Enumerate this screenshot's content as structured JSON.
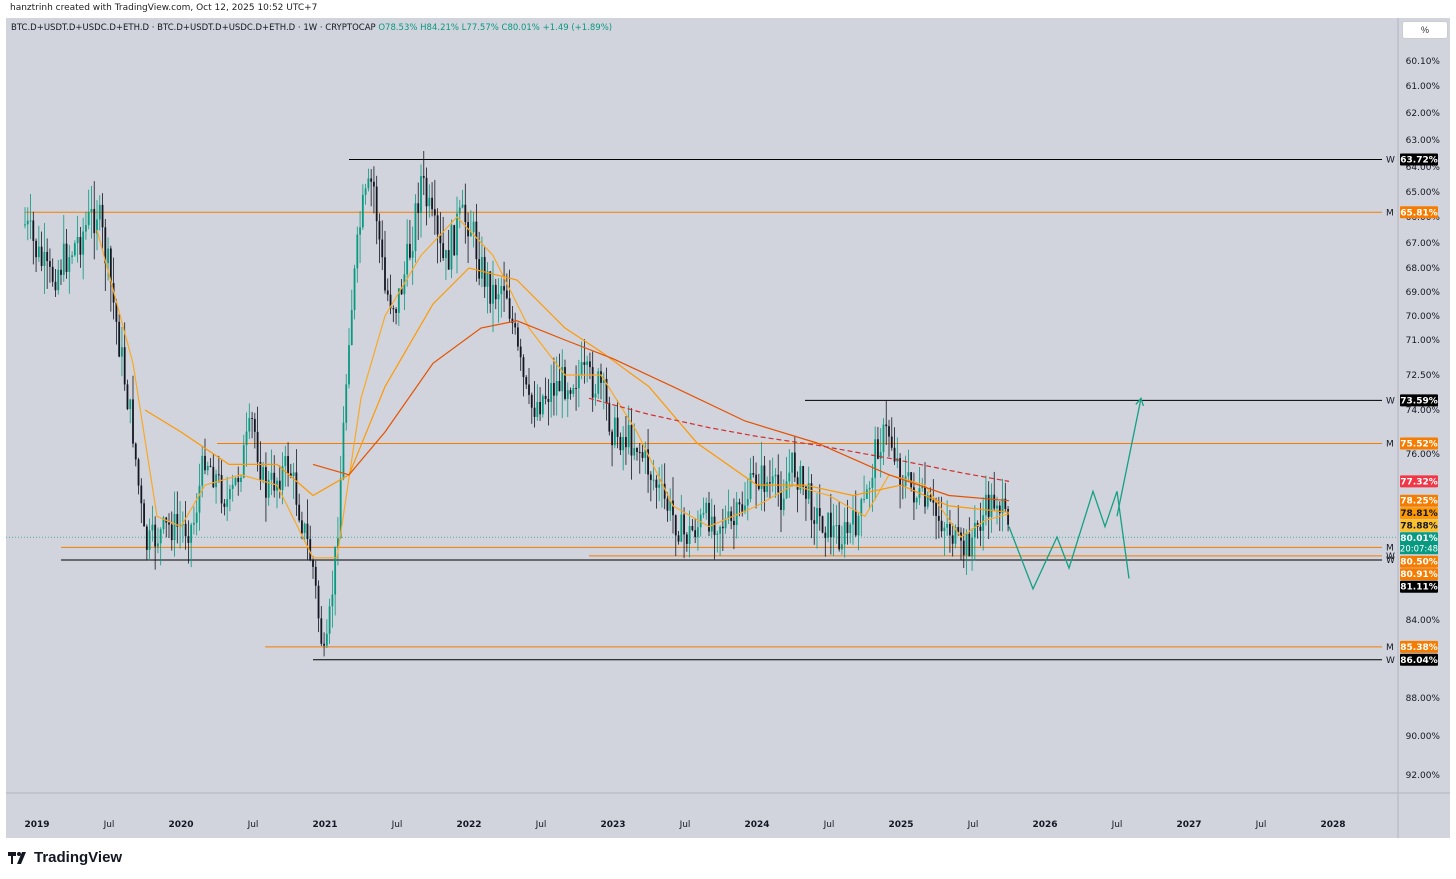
{
  "attribution": "hanztrinh created with TradingView.com, Oct 12, 2025 10:52 UTC+7",
  "symbol": {
    "name": "BTC.D+USDT.D+USDC.D+ETH.D · BTC.D+USDT.D+USDC.D+ETH.D · 1W · CRYPTOCAP",
    "open": "O78.53%",
    "high": "H84.21%",
    "low": "L77.57%",
    "close": "C80.01%",
    "change": "+1.49 (+1.89%)"
  },
  "percent_button": "%",
  "brand": "TradingView",
  "chart_data": {
    "type": "candlestick",
    "title": "",
    "y_axis": {
      "inverted": true,
      "ticks": [
        "60.10%",
        "61.00%",
        "62.00%",
        "63.00%",
        "64.00%",
        "65.00%",
        "66.00%",
        "67.00%",
        "68.00%",
        "69.00%",
        "70.00%",
        "71.00%",
        "72.50%",
        "74.00%",
        "76.00%",
        "84.00%",
        "88.00%",
        "90.00%",
        "92.00%"
      ],
      "tick_values": [
        60.1,
        61,
        62,
        63,
        64,
        65,
        66,
        67,
        68,
        69,
        70,
        71,
        72.5,
        74,
        76,
        84,
        88,
        90,
        92
      ]
    },
    "x_axis": {
      "labels": [
        "2019",
        "Jul",
        "2020",
        "Jul",
        "2021",
        "Jul",
        "2022",
        "Jul",
        "2023",
        "Jul",
        "2024",
        "Jul",
        "2025",
        "Jul",
        "2026",
        "Jul",
        "2027",
        "Jul",
        "2028"
      ],
      "dates": [
        "2019-01",
        "2019-07",
        "2020-01",
        "2020-07",
        "2021-01",
        "2021-07",
        "2022-01",
        "2022-07",
        "2023-01",
        "2023-07",
        "2024-01",
        "2024-07",
        "2025-01",
        "2025-07",
        "2026-01",
        "2026-07",
        "2027-01",
        "2027-07",
        "2028-01"
      ]
    },
    "horizontal_levels": [
      {
        "value": 63.72,
        "label": "63.72%",
        "tag": "W",
        "color": "#000000",
        "from": "2021-03"
      },
      {
        "value": 65.81,
        "label": "65.81%",
        "tag": "M",
        "color": "#f57c00",
        "from": "2018-12"
      },
      {
        "value": 73.59,
        "label": "73.59%",
        "tag": "W",
        "color": "#000000",
        "from": "2024-05"
      },
      {
        "value": 75.52,
        "label": "75.52%",
        "tag": "M",
        "color": "#f57c00",
        "from": "2020-04"
      },
      {
        "value": 80.5,
        "label": "80.50%",
        "tag": "M",
        "color": "#f57c00",
        "from": "2019-03"
      },
      {
        "value": 80.91,
        "label": "80.91%",
        "tag": "W",
        "color": "#f57c00",
        "from": "2022-11"
      },
      {
        "value": 81.11,
        "label": "81.11%",
        "tag": "W",
        "color": "#000000",
        "from": "2019-03"
      },
      {
        "value": 85.38,
        "label": "85.38%",
        "tag": "M",
        "color": "#f57c00",
        "from": "2020-08"
      },
      {
        "value": 86.04,
        "label": "86.04%",
        "tag": "W",
        "color": "#000000",
        "from": "2020-12"
      }
    ],
    "price_badges": [
      {
        "value": 77.32,
        "label": "77.32%",
        "color": "#f23645"
      },
      {
        "value": 78.25,
        "label": "78.25%",
        "color": "#f57c00"
      },
      {
        "value": 78.81,
        "label": "78.81%",
        "color": "#ff9800"
      },
      {
        "value": 78.88,
        "label": "78.88%",
        "color": "#fbc02d"
      },
      {
        "value": 80.01,
        "label": "80.01%",
        "color": "#089981"
      }
    ],
    "countdown": "20:07:48",
    "current_price": 80.01,
    "series": [
      {
        "kind": "candles",
        "approx_path": [
          [
            "2018-12",
            66.3
          ],
          [
            "2019-02",
            68.5
          ],
          [
            "2019-04",
            67.2
          ],
          [
            "2019-06",
            65.7
          ],
          [
            "2019-07",
            68.2
          ],
          [
            "2019-09",
            75.0
          ],
          [
            "2019-10",
            80.5
          ],
          [
            "2019-12",
            79.5
          ],
          [
            "2020-02",
            79.5
          ],
          [
            "2020-03",
            76.0
          ],
          [
            "2020-05",
            78.5
          ],
          [
            "2020-07",
            74.5
          ],
          [
            "2020-08",
            77.8
          ],
          [
            "2020-10",
            76.5
          ],
          [
            "2020-12",
            81.5
          ],
          [
            "2021-01",
            86.5
          ],
          [
            "2021-02",
            80.0
          ],
          [
            "2021-03",
            70.5
          ],
          [
            "2021-04",
            66.0
          ],
          [
            "2021-05",
            64.5
          ],
          [
            "2021-06",
            69.0
          ],
          [
            "2021-07",
            69.5
          ],
          [
            "2021-08",
            67.5
          ],
          [
            "2021-09",
            64.5
          ],
          [
            "2021-10",
            66.5
          ],
          [
            "2021-11",
            68.0
          ],
          [
            "2021-12",
            66.3
          ],
          [
            "2022-01",
            66.0
          ],
          [
            "2022-02",
            68.0
          ],
          [
            "2022-03",
            69.0
          ],
          [
            "2022-04",
            68.5
          ],
          [
            "2022-05",
            71.5
          ],
          [
            "2022-06",
            74.0
          ],
          [
            "2022-08",
            73.0
          ],
          [
            "2022-10",
            72.5
          ],
          [
            "2022-12",
            73.0
          ],
          [
            "2023-01",
            75.0
          ],
          [
            "2023-03",
            75.5
          ],
          [
            "2023-05",
            78.0
          ],
          [
            "2023-07",
            80.0
          ],
          [
            "2023-09",
            79.0
          ],
          [
            "2023-11",
            79.5
          ],
          [
            "2024-01",
            77.0
          ],
          [
            "2024-03",
            78.0
          ],
          [
            "2024-04",
            76.5
          ],
          [
            "2024-06",
            79.0
          ],
          [
            "2024-08",
            80.0
          ],
          [
            "2024-09",
            79.5
          ],
          [
            "2024-10",
            78.5
          ],
          [
            "2024-11",
            75.5
          ],
          [
            "2024-12",
            75.0
          ],
          [
            "2025-01",
            77.0
          ],
          [
            "2025-03",
            78.5
          ],
          [
            "2025-05",
            79.5
          ],
          [
            "2025-06",
            80.8
          ],
          [
            "2025-07",
            80.0
          ],
          [
            "2025-08",
            78.8
          ],
          [
            "2025-09",
            78.0
          ],
          [
            "2025-10",
            80.01
          ]
        ]
      },
      {
        "kind": "ma",
        "color": "#f9a825",
        "approx_path": [
          [
            "2019-06",
            66.5
          ],
          [
            "2019-09",
            72.0
          ],
          [
            "2019-11",
            79.0
          ],
          [
            "2020-01",
            79.5
          ],
          [
            "2020-03",
            77.5
          ],
          [
            "2020-06",
            77.0
          ],
          [
            "2020-09",
            77.5
          ],
          [
            "2020-12",
            81.0
          ],
          [
            "2021-02",
            81.0
          ],
          [
            "2021-04",
            73.5
          ],
          [
            "2021-06",
            70.0
          ],
          [
            "2021-09",
            67.5
          ],
          [
            "2021-12",
            66.0
          ],
          [
            "2022-03",
            67.5
          ],
          [
            "2022-06",
            70.5
          ],
          [
            "2022-09",
            72.5
          ],
          [
            "2022-12",
            72.5
          ],
          [
            "2023-03",
            75.0
          ],
          [
            "2023-06",
            78.5
          ],
          [
            "2023-09",
            79.5
          ],
          [
            "2024-01",
            78.5
          ],
          [
            "2024-04",
            77.5
          ],
          [
            "2024-07",
            78.0
          ],
          [
            "2024-10",
            79.0
          ],
          [
            "2024-12",
            77.0
          ],
          [
            "2025-03",
            77.5
          ],
          [
            "2025-06",
            80.0
          ],
          [
            "2025-08",
            79.2
          ],
          [
            "2025-10",
            78.88
          ]
        ]
      },
      {
        "kind": "ma",
        "color": "#ff9800",
        "approx_path": [
          [
            "2019-10",
            74.0
          ],
          [
            "2020-01",
            75.0
          ],
          [
            "2020-05",
            76.5
          ],
          [
            "2020-09",
            76.5
          ],
          [
            "2020-12",
            78.0
          ],
          [
            "2021-03",
            77.0
          ],
          [
            "2021-06",
            73.0
          ],
          [
            "2021-10",
            69.5
          ],
          [
            "2022-01",
            68.0
          ],
          [
            "2022-05",
            68.5
          ],
          [
            "2022-09",
            70.5
          ],
          [
            "2022-12",
            71.5
          ],
          [
            "2023-04",
            73.0
          ],
          [
            "2023-08",
            75.5
          ],
          [
            "2024-01",
            77.5
          ],
          [
            "2024-05",
            77.5
          ],
          [
            "2024-09",
            78.0
          ],
          [
            "2025-01",
            77.5
          ],
          [
            "2025-05",
            78.5
          ],
          [
            "2025-10",
            78.81
          ]
        ]
      },
      {
        "kind": "ma",
        "color": "#e65100",
        "approx_path": [
          [
            "2020-12",
            76.5
          ],
          [
            "2021-03",
            77.0
          ],
          [
            "2021-06",
            75.0
          ],
          [
            "2021-10",
            72.0
          ],
          [
            "2022-02",
            70.5
          ],
          [
            "2022-05",
            70.2
          ],
          [
            "2022-09",
            71.0
          ],
          [
            "2023-01",
            71.8
          ],
          [
            "2023-06",
            73.0
          ],
          [
            "2023-12",
            74.5
          ],
          [
            "2024-06",
            75.5
          ],
          [
            "2024-12",
            77.0
          ],
          [
            "2025-05",
            78.0
          ],
          [
            "2025-10",
            78.25
          ]
        ]
      },
      {
        "kind": "ma",
        "color": "#d32f2f",
        "dashed": true,
        "approx_path": [
          [
            "2022-11",
            73.5
          ],
          [
            "2023-04",
            74.2
          ],
          [
            "2023-09",
            74.8
          ],
          [
            "2024-01",
            75.2
          ],
          [
            "2024-06",
            75.6
          ],
          [
            "2024-12",
            76.2
          ],
          [
            "2025-06",
            76.9
          ],
          [
            "2025-10",
            77.32
          ]
        ]
      }
    ],
    "projection": {
      "color": "#14a085",
      "path": [
        [
          "2025-10",
          79.5
        ],
        [
          "2025-11",
          81.0
        ],
        [
          "2025-12",
          82.5
        ],
        [
          "2026-02",
          80.0
        ],
        [
          "2026-03",
          81.5
        ],
        [
          "2026-05",
          77.8
        ],
        [
          "2026-06",
          79.5
        ],
        [
          "2026-07",
          77.8
        ],
        [
          "2026-08",
          82.0
        ]
      ],
      "arrow_up": [
        [
          "2026-07",
          79.0
        ],
        [
          "2026-09",
          73.5
        ]
      ]
    }
  }
}
